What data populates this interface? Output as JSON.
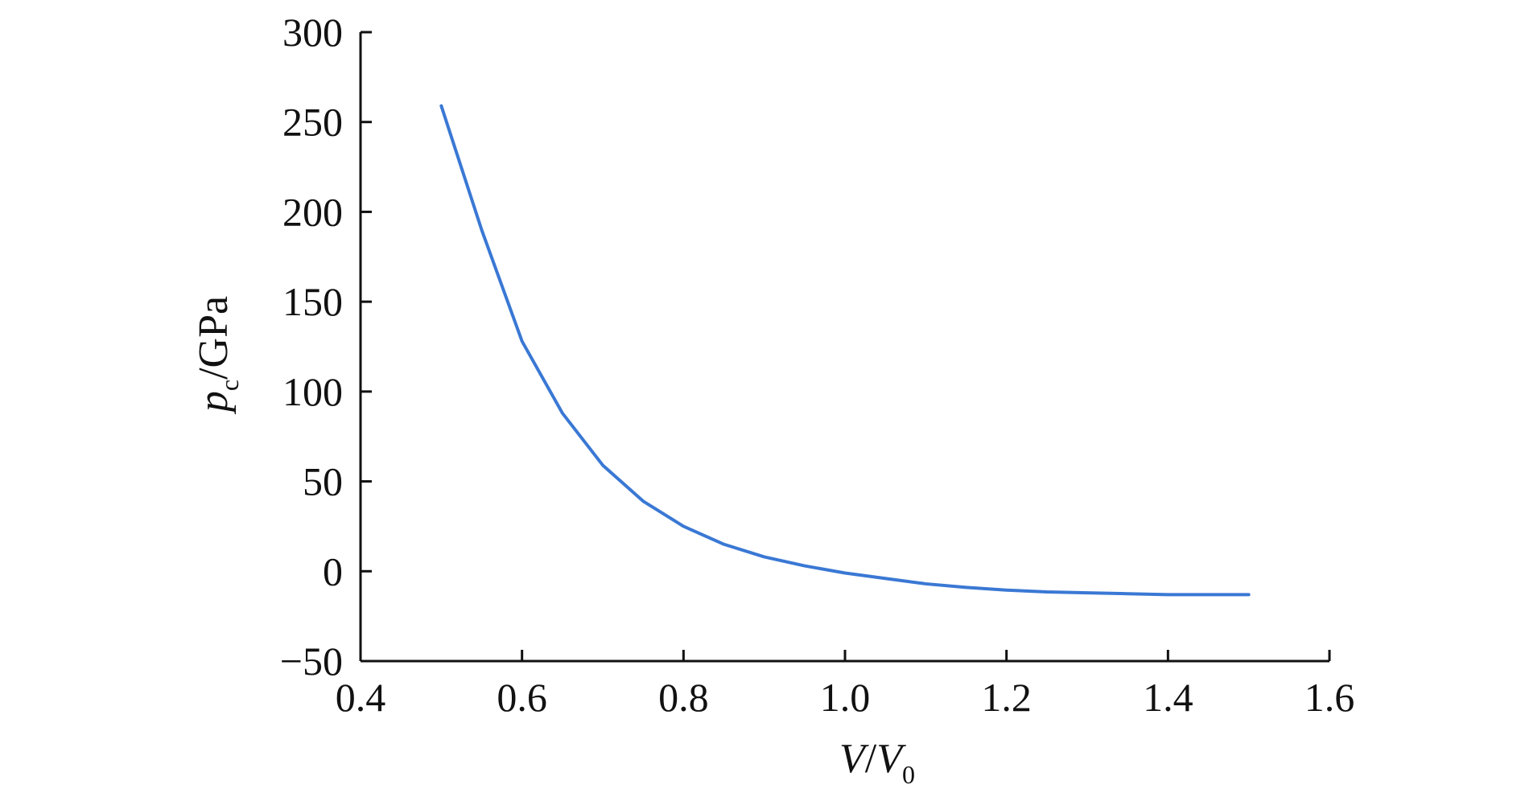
{
  "chart_data": {
    "type": "line",
    "xlabel": {
      "main": "V",
      "slash": "/",
      "sub_main": "V",
      "sub": "0"
    },
    "ylabel": {
      "main": "p",
      "sub": "c",
      "unit": "/GPa"
    },
    "xlim": [
      0.4,
      1.6
    ],
    "ylim": [
      -50,
      300
    ],
    "xticks": [
      0.4,
      0.6,
      0.8,
      1.0,
      1.2,
      1.4,
      1.6
    ],
    "xtick_labels": [
      "0.4",
      "0.6",
      "0.8",
      "1.0",
      "1.2",
      "1.4",
      "1.6"
    ],
    "yticks": [
      -50,
      0,
      50,
      100,
      150,
      200,
      250,
      300
    ],
    "ytick_labels": [
      "−50",
      "0",
      "50",
      "100",
      "150",
      "200",
      "250",
      "300"
    ],
    "grid": false,
    "legend": "none",
    "series": [
      {
        "color": "#3a78d4",
        "x": [
          0.5,
          0.55,
          0.6,
          0.65,
          0.7,
          0.75,
          0.8,
          0.85,
          0.9,
          0.95,
          1.0,
          1.05,
          1.1,
          1.15,
          1.2,
          1.25,
          1.3,
          1.35,
          1.4,
          1.45,
          1.5
        ],
        "y": [
          259,
          190,
          128,
          88,
          59,
          39,
          25,
          15,
          8,
          3,
          -1,
          -4,
          -7,
          -9,
          -10.5,
          -11.5,
          -12,
          -12.5,
          -13,
          -13,
          -13
        ]
      }
    ]
  }
}
